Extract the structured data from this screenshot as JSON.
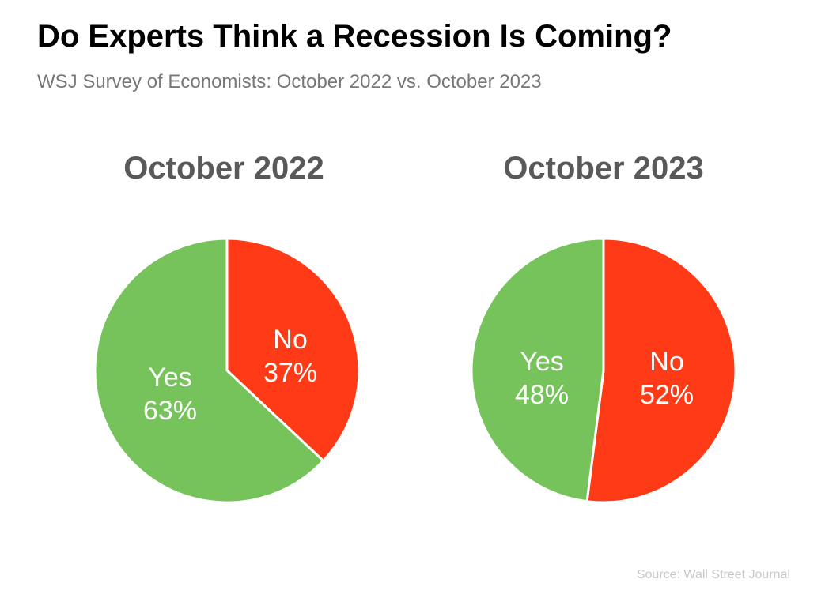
{
  "title": "Do Experts Think a Recession Is Coming?",
  "subtitle": "WSJ Survey of Economists: October 2022 vs. October 2023",
  "source": "Source: Wall Street Journal",
  "colors": {
    "yes": "#77C35B",
    "no": "#FF3B17",
    "title": "#595959"
  },
  "chart_data": [
    {
      "type": "pie",
      "title": "October 2022",
      "slices": [
        {
          "label": "No",
          "value": 37,
          "value_label": "37%",
          "color": "#FF3B17"
        },
        {
          "label": "Yes",
          "value": 63,
          "value_label": "63%",
          "color": "#77C35B"
        }
      ]
    },
    {
      "type": "pie",
      "title": "October 2023",
      "slices": [
        {
          "label": "No",
          "value": 52,
          "value_label": "52%",
          "color": "#FF3B17"
        },
        {
          "label": "Yes",
          "value": 48,
          "value_label": "48%",
          "color": "#77C35B"
        }
      ]
    }
  ]
}
